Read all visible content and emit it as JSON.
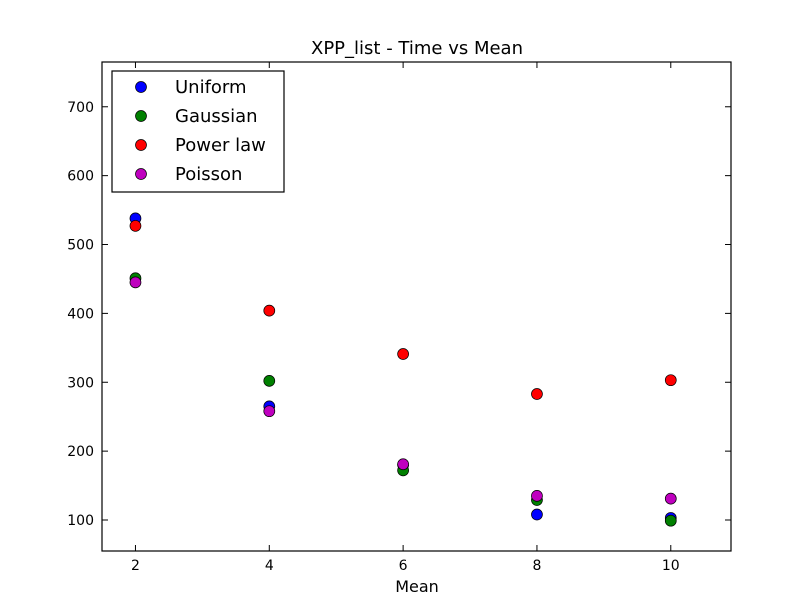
{
  "chart_data": {
    "type": "scatter",
    "title": "XPP_list - Time vs Mean",
    "xlabel": "Mean",
    "ylabel": "",
    "x": [
      2,
      4,
      6,
      8,
      10
    ],
    "xlim": [
      1.5,
      10.9
    ],
    "ylim": [
      55,
      765
    ],
    "xticks": [
      2,
      4,
      6,
      8,
      10
    ],
    "yticks": [
      100,
      200,
      300,
      400,
      500,
      600,
      700
    ],
    "grid": false,
    "legend_position": "top-left",
    "series": [
      {
        "name": "Uniform",
        "color": "#0000ff",
        "values": [
          538,
          265,
          180,
          108,
          103
        ]
      },
      {
        "name": "Gaussian",
        "color": "#008000",
        "values": [
          451,
          302,
          172,
          129,
          99
        ]
      },
      {
        "name": "Power law",
        "color": "#ff0000",
        "values": [
          527,
          404,
          341,
          283,
          303
        ]
      },
      {
        "name": "Poisson",
        "color": "#bf00bf",
        "values": [
          445,
          258,
          181,
          135,
          131
        ]
      }
    ]
  }
}
